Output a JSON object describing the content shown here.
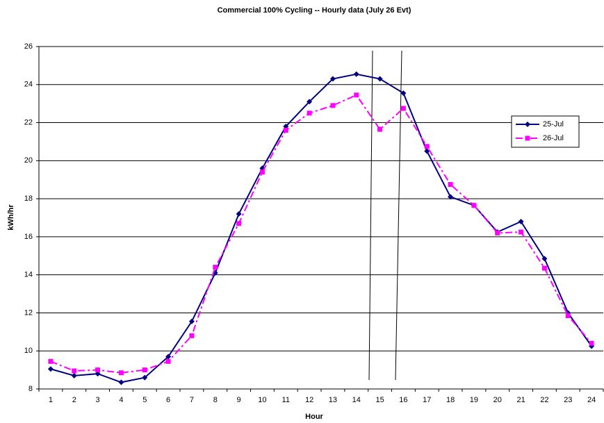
{
  "chart_data": {
    "type": "line",
    "title": "Commercial 100% Cycling -- Hourly data (July 26 Evt)",
    "x_label": "Hour",
    "y_label": "kWh/hr",
    "categories": [
      "1",
      "2",
      "3",
      "4",
      "5",
      "6",
      "7",
      "8",
      "9",
      "10",
      "11",
      "12",
      "13",
      "14",
      "15",
      "16",
      "17",
      "18",
      "19",
      "20",
      "21",
      "22",
      "23",
      "24"
    ],
    "series": [
      {
        "name": "25-Jul",
        "color": "#000080",
        "marker": "diamond",
        "linestyle": "solid",
        "values": [
          9.05,
          8.7,
          8.8,
          8.35,
          8.6,
          9.7,
          11.55,
          14.1,
          17.2,
          19.6,
          21.8,
          23.1,
          24.3,
          24.55,
          24.3,
          23.55,
          20.5,
          18.1,
          17.65,
          16.25,
          16.8,
          14.85,
          12.0,
          10.25
        ]
      },
      {
        "name": "26-Jul",
        "color": "#ff00ff",
        "marker": "square",
        "linestyle": "dashdot",
        "values": [
          9.45,
          8.95,
          9.0,
          8.85,
          9.0,
          9.45,
          10.8,
          14.4,
          16.7,
          19.4,
          21.6,
          22.5,
          22.9,
          23.45,
          21.65,
          22.75,
          20.75,
          18.75,
          17.65,
          16.2,
          16.25,
          14.35,
          11.85,
          10.4
        ]
      }
    ],
    "ylim": [
      8,
      26
    ],
    "yticks": [
      8,
      10,
      12,
      14,
      16,
      18,
      20,
      22,
      24,
      26
    ],
    "grid": true,
    "legend": "right"
  }
}
